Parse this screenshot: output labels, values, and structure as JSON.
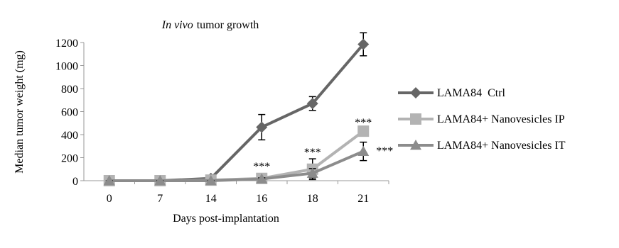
{
  "chart_data": {
    "type": "line",
    "title": [
      "In vivo",
      "tumor growth"
    ],
    "x_label": "Days post-implantation",
    "y_label": "Median tumor weight (mg)",
    "categories": [
      "0",
      "7",
      "14",
      "16",
      "18",
      "21"
    ],
    "ylim": [
      0,
      1200
    ],
    "yticks": [
      0,
      200,
      400,
      600,
      800,
      1000,
      1200
    ],
    "grid": false,
    "legend": "right",
    "series": [
      {
        "name": "LAMA84  Ctrl",
        "color": "#666666",
        "marker": "diamond",
        "values": [
          0,
          0,
          20,
          465,
          670,
          1185
        ],
        "errors": [
          0,
          0,
          5,
          110,
          60,
          100
        ]
      },
      {
        "name": "LAMA84+ Nanovesicles IP",
        "color": "#b3b3b3",
        "marker": "square",
        "values": [
          0,
          0,
          5,
          20,
          100,
          430
        ],
        "errors": [
          0,
          0,
          0,
          15,
          90,
          40
        ]
      },
      {
        "name": "LAMA84+ Nanovesicles IT",
        "color": "#8c8c8c",
        "marker": "triangle",
        "values": [
          0,
          0,
          0,
          15,
          65,
          255
        ],
        "errors": [
          0,
          0,
          0,
          10,
          40,
          80
        ]
      }
    ],
    "annotations": [
      "***",
      "***",
      "***",
      "***"
    ]
  }
}
